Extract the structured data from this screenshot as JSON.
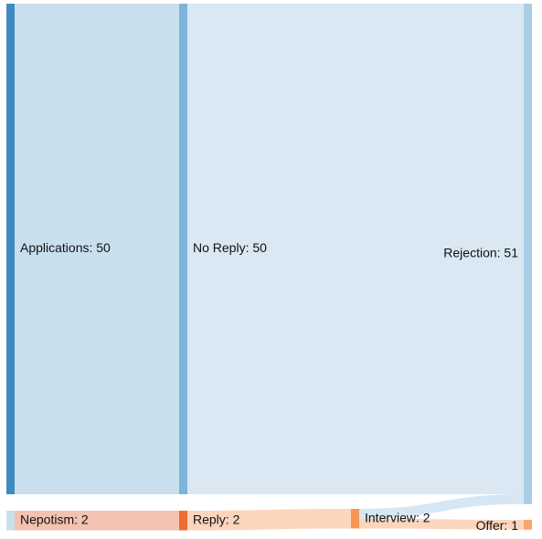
{
  "chart_data": {
    "type": "sankey",
    "nodes": [
      {
        "id": "applications",
        "label": "Applications: 50",
        "value": 50,
        "color": "#3f8bc1"
      },
      {
        "id": "no_reply",
        "label": "No Reply: 50",
        "value": 50,
        "color": "#7db4d9"
      },
      {
        "id": "rejection",
        "label": "Rejection: 51",
        "value": 51,
        "color": "#a9cde5"
      },
      {
        "id": "nepotism",
        "label": "Nepotism: 2",
        "value": 2,
        "color": "#c9dfee"
      },
      {
        "id": "reply",
        "label": "Reply: 2",
        "value": 2,
        "color": "#ee6b37"
      },
      {
        "id": "interview",
        "label": "Interview: 2",
        "value": 2,
        "color": "#f79653"
      },
      {
        "id": "offer",
        "label": "Offer: 1",
        "value": 1,
        "color": "#f7a671"
      }
    ],
    "links": [
      {
        "source": "applications",
        "target": "no_reply",
        "value": 50,
        "color": "#c9dfee"
      },
      {
        "source": "no_reply",
        "target": "rejection",
        "value": 50,
        "color": "#d9e8f3"
      },
      {
        "source": "nepotism",
        "target": "reply",
        "value": 2,
        "color": "#f4c2b0"
      },
      {
        "source": "reply",
        "target": "interview",
        "value": 2,
        "color": "#fbd6bd"
      },
      {
        "source": "interview",
        "target": "rejection",
        "value": 1,
        "color": "#d6e6f3"
      },
      {
        "source": "interview",
        "target": "offer",
        "value": 1,
        "color": "#fbd6bd"
      }
    ]
  }
}
